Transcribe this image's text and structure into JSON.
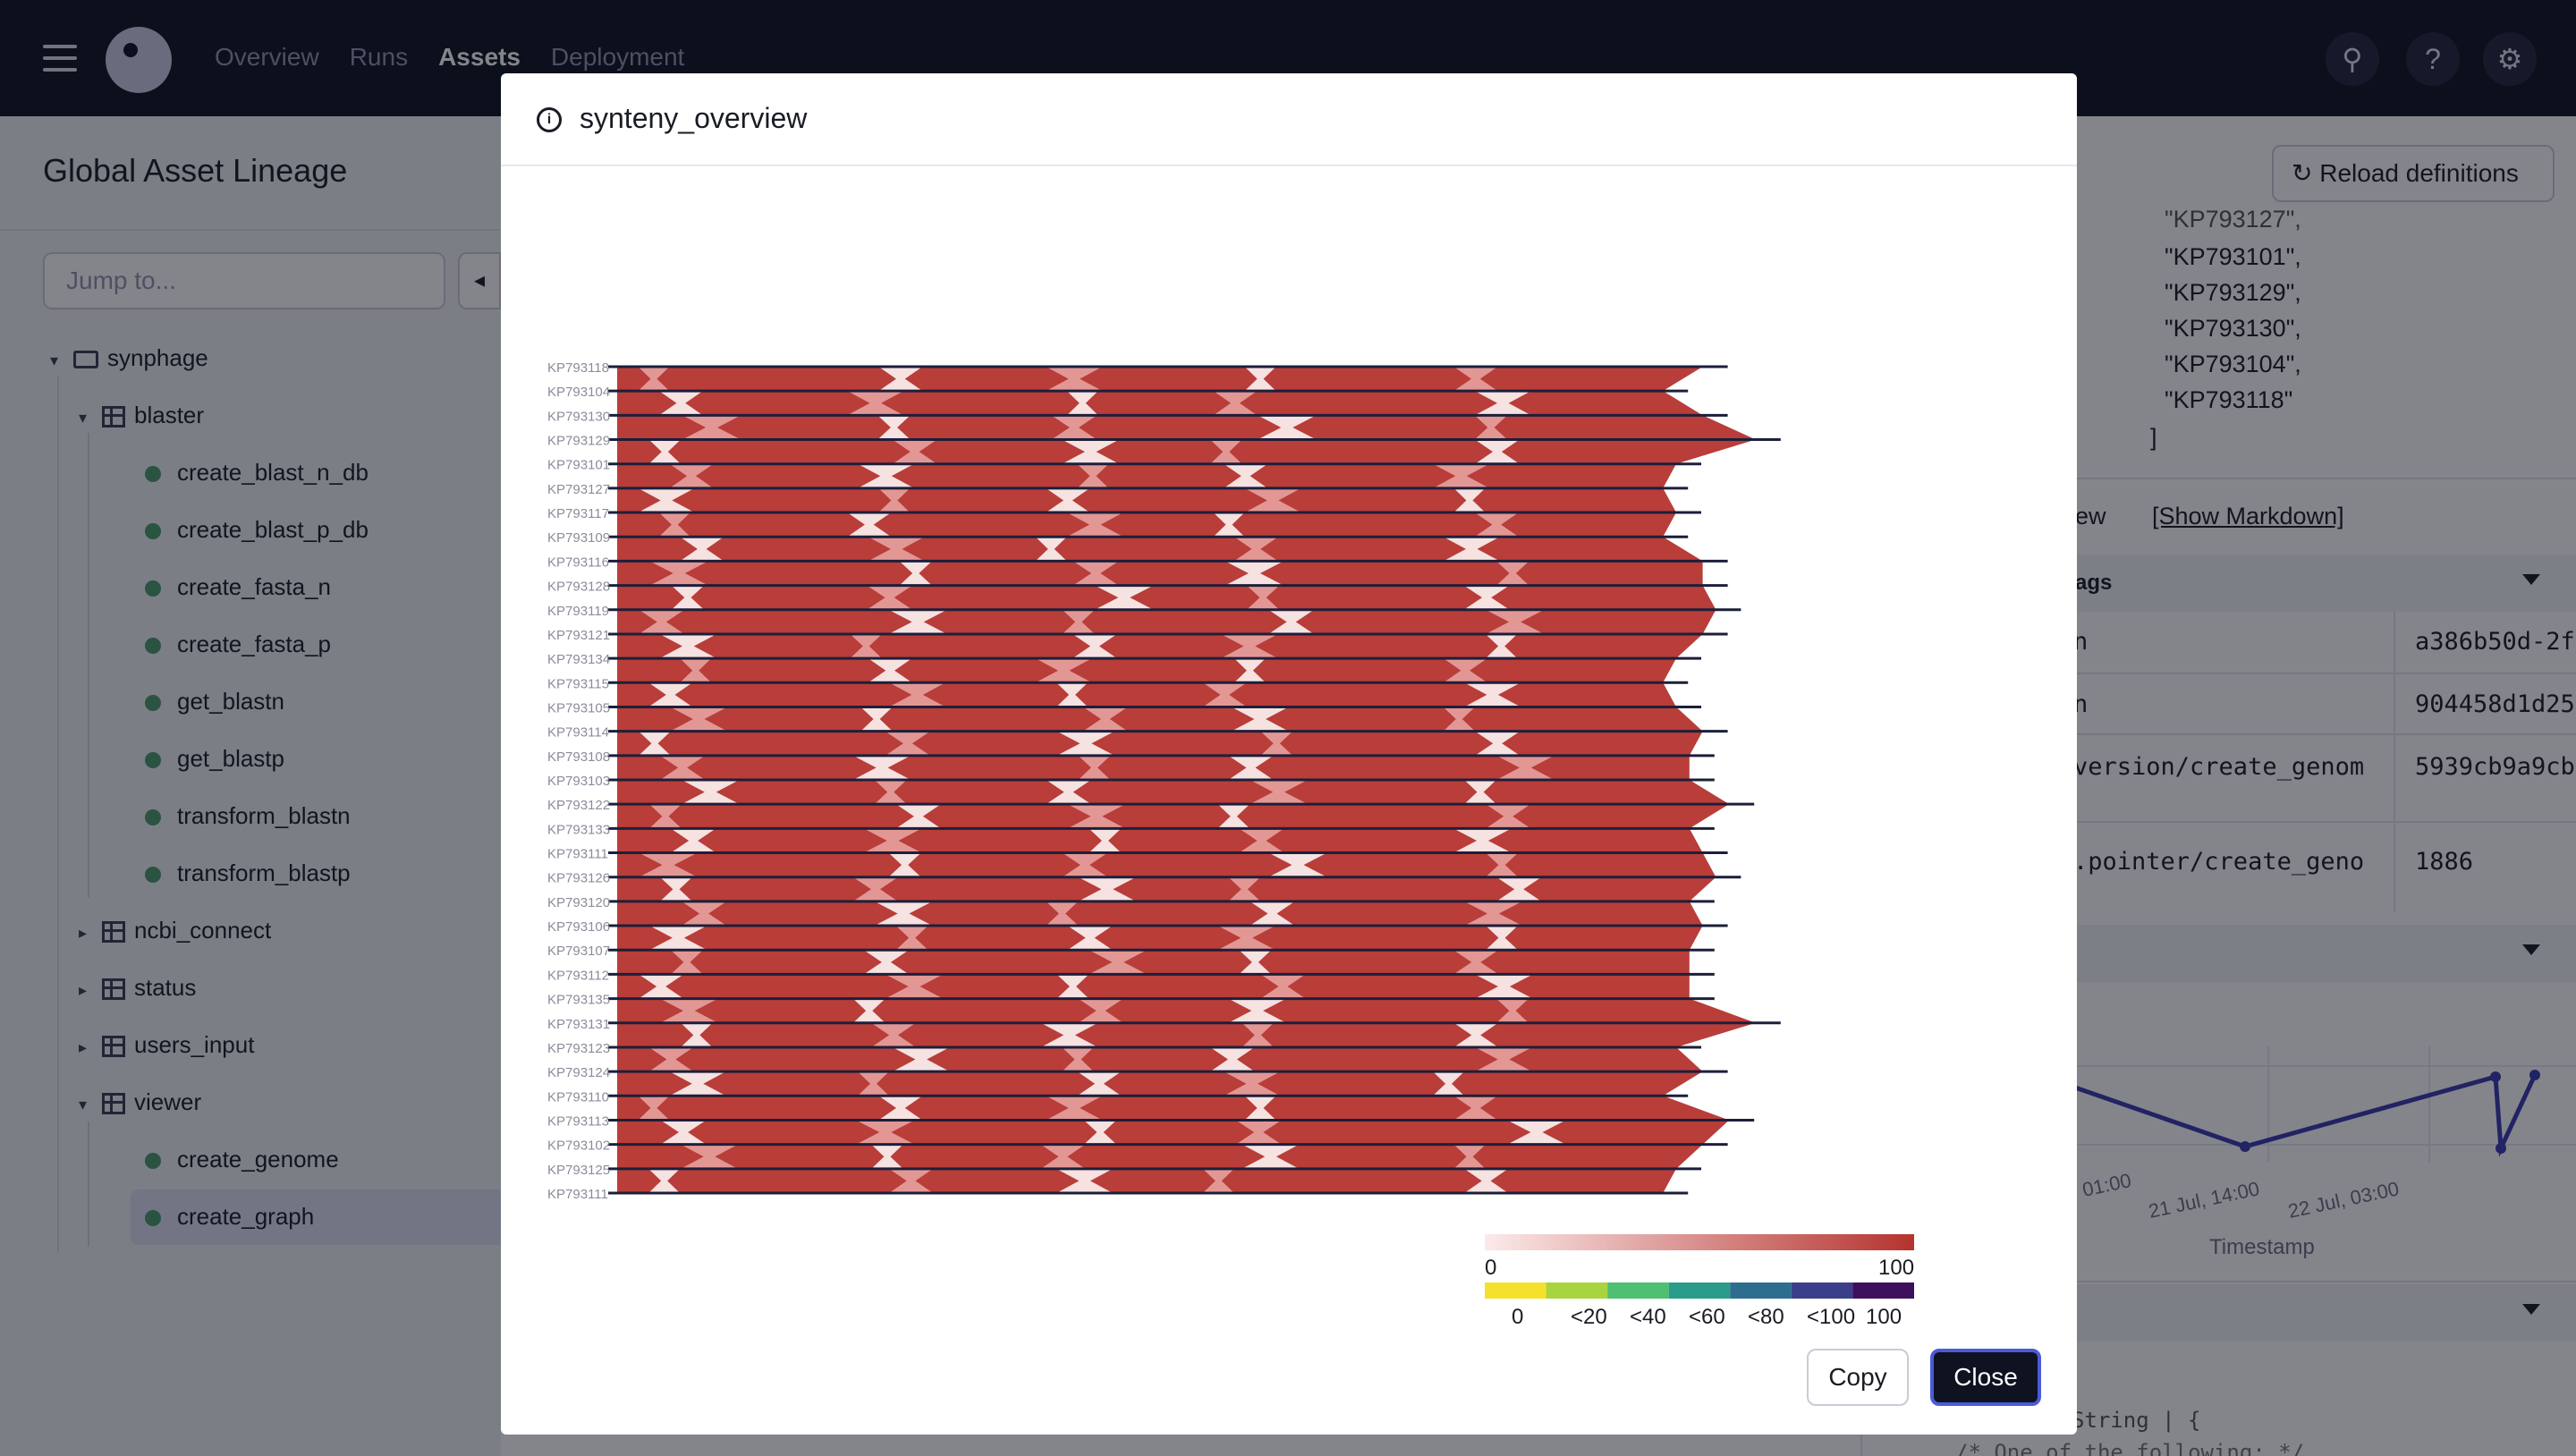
{
  "nav": {
    "items": [
      "Overview",
      "Runs",
      "Assets",
      "Deployment"
    ],
    "active": "Assets"
  },
  "header_icons": [
    "search-icon",
    "help-icon",
    "gear-icon"
  ],
  "sidebar": {
    "title": "Global Asset Lineage",
    "jump_placeholder": "Jump to...",
    "tree": {
      "root": "synphage",
      "blaster": {
        "label": "blaster",
        "assets": [
          "create_blast_n_db",
          "create_blast_p_db",
          "create_fasta_n",
          "create_fasta_p",
          "get_blastn",
          "get_blastp",
          "transform_blastn",
          "transform_blastp"
        ]
      },
      "collapsed_groups": [
        "ncbi_connect",
        "status",
        "users_input"
      ],
      "viewer": {
        "label": "viewer",
        "assets": [
          "create_genome",
          "create_graph"
        ]
      }
    }
  },
  "right_panel": {
    "reload_label": "Reload definitions",
    "list_partial": "\"KP793127\",",
    "list_values": [
      "\"KP793101\",",
      "\"KP793129\",",
      "\"KP793130\",",
      "\"KP793104\",",
      "\"KP793118\""
    ],
    "list_close": "]",
    "preview_label": "ew",
    "show_markdown": "[Show Markdown]",
    "tags_label": "ags",
    "tag_rows": [
      {
        "key": "n",
        "value": "a386b50d-2f"
      },
      {
        "key": "n",
        "value": "904458d1d25"
      },
      {
        "key": "version/create_genom",
        "value": "5939cb9a9cb"
      },
      {
        "key": ".pointer/create_geno",
        "value": "1886"
      }
    ],
    "chart_ticks": [
      "01:00",
      "21 Jul, 14:00",
      "22 Jul, 03:00"
    ],
    "chart_xlabel": "Timestamp",
    "code_lines": [
      "String | {",
      "/* One of the following: */"
    ]
  },
  "modal": {
    "title": "synteny_overview",
    "copy_label": "Copy",
    "close_label": "Close"
  },
  "colors": {
    "identity_high": "#b5332e",
    "identity_low": "#fbeaea",
    "accent": "#4b5bd8",
    "topbar": "#0f1220"
  },
  "chart_data": {
    "type": "synteny",
    "title": "",
    "genomes": [
      "KP793118",
      "KP793104",
      "KP793130",
      "KP793129",
      "KP793101",
      "KP793127",
      "KP793117",
      "KP793109",
      "KP793116",
      "KP793128",
      "KP793119",
      "KP793121",
      "KP793134",
      "KP793115",
      "KP793105",
      "KP793114",
      "KP793108",
      "KP793103",
      "KP793122",
      "KP793133",
      "KP793111",
      "KP793126",
      "KP793120",
      "KP793106",
      "KP793107",
      "KP793112",
      "KP793135",
      "KP793131",
      "KP793123",
      "KP793124",
      "KP793110",
      "KP793113",
      "KP793102",
      "KP793125",
      "KP793111"
    ],
    "genome_lengths_pct": [
      82,
      79,
      82,
      86,
      80,
      79,
      80,
      79,
      82,
      82,
      83,
      82,
      80,
      79,
      80,
      82,
      81,
      81,
      84,
      81,
      82,
      83,
      81,
      82,
      81,
      81,
      81,
      86,
      80,
      82,
      79,
      84,
      82,
      80,
      79
    ],
    "identity_legend": {
      "min_label": "0",
      "max_label": "100",
      "range": [
        0,
        100
      ]
    },
    "gc_legend": {
      "labels": [
        "0",
        "<20",
        "<40",
        "<60",
        "<80",
        "<100",
        "100"
      ],
      "colors": [
        "#f5e12b",
        "#a8d43f",
        "#4fbf71",
        "#2a9c8a",
        "#2d6e8e",
        "#3b3f8a",
        "#3d0f5c"
      ]
    }
  }
}
